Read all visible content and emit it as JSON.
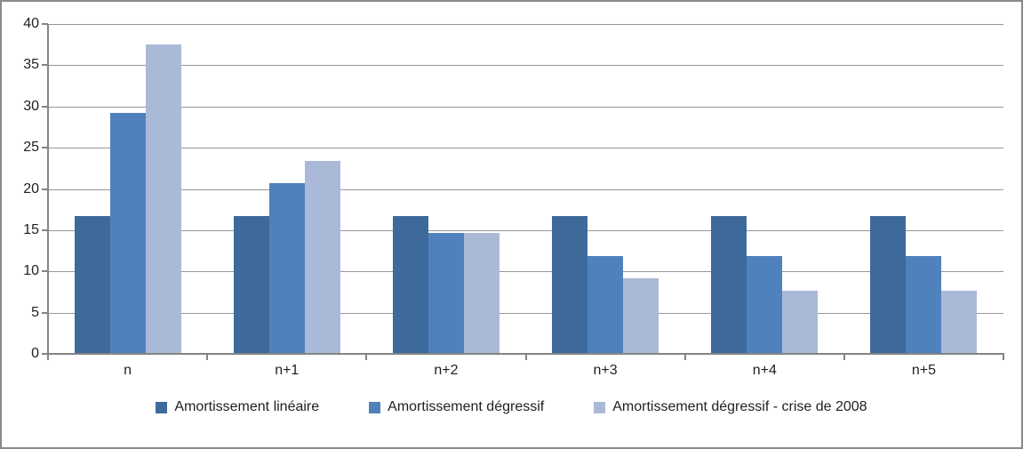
{
  "chart_data": {
    "type": "bar",
    "title": "",
    "xlabel": "",
    "ylabel": "",
    "categories": [
      "n",
      "n+1",
      "n+2",
      "n+3",
      "n+4",
      "n+5"
    ],
    "series": [
      {
        "name": "Amortissement linéaire",
        "color": "#3E699B",
        "values": [
          16.67,
          16.67,
          16.67,
          16.67,
          16.67,
          16.67
        ]
      },
      {
        "name": "Amortissement dégressif",
        "color": "#4F81BD",
        "values": [
          29.17,
          20.66,
          14.63,
          11.84,
          11.84,
          11.84
        ]
      },
      {
        "name": "Amortissement dégressif - crise de 2008",
        "color": "#ABB9D8",
        "values": [
          37.5,
          23.44,
          14.65,
          9.16,
          7.63,
          7.63
        ]
      }
    ],
    "ylim": [
      0,
      40
    ],
    "ytick_step": 5,
    "ytick_labels": [
      "0",
      "5",
      "10",
      "15",
      "20",
      "25",
      "30",
      "35",
      "40"
    ],
    "grid": true,
    "legend_position": "bottom"
  },
  "style": {
    "axis_color": "#848484",
    "gridline_color": "#989898",
    "text_color": "#1F1F1F",
    "border_color": "#8A8A8A",
    "background": "#FFFFFF"
  }
}
